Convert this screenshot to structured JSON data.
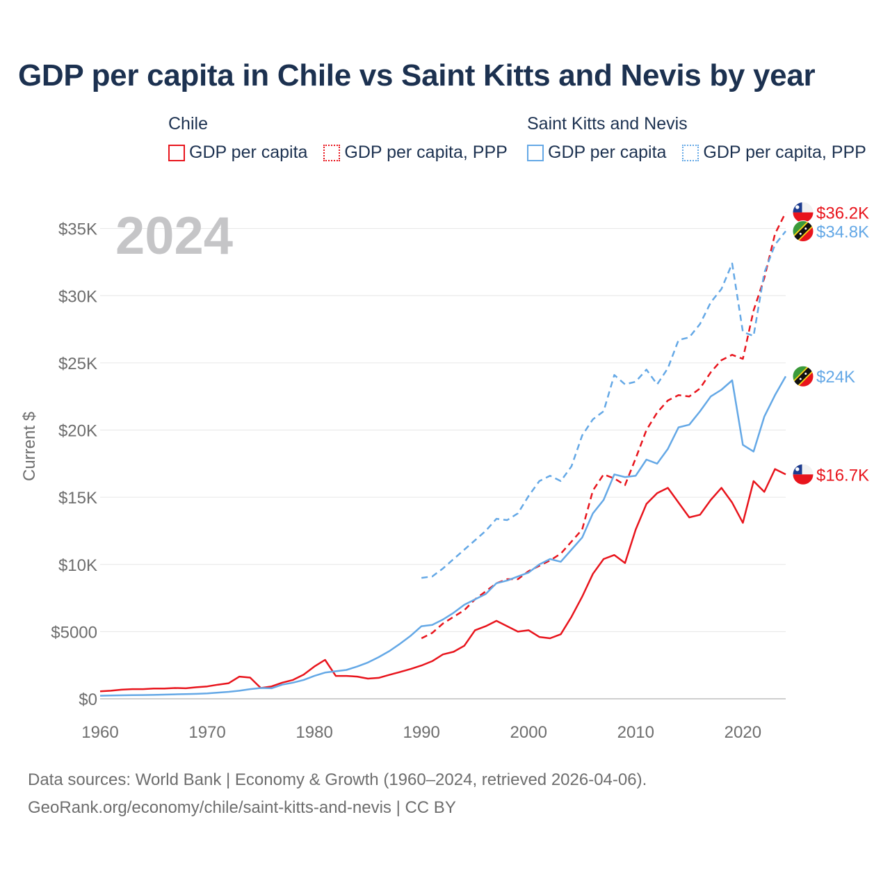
{
  "title": "GDP per capita in Chile vs Saint Kitts and Nevis by year",
  "legend": {
    "groups": [
      {
        "name": "Chile",
        "items": [
          "GDP per capita",
          "GDP per capita, PPP"
        ]
      },
      {
        "name": "Saint Kitts and Nevis",
        "items": [
          "GDP per capita",
          "GDP per capita, PPP"
        ]
      }
    ]
  },
  "year_label": "2024",
  "footer": {
    "line1": "Data sources: World Bank | Economy & Growth (1960–2024, retrieved 2026-04-06).",
    "line2": "GeoRank.org/economy/chile/saint-kitts-and-nevis | CC BY"
  },
  "colors": {
    "chile": "#e8141c",
    "skn": "#64a8e6",
    "title": "#1c3150",
    "axis": "#6d6d6d",
    "grid": "#e6e6e6"
  },
  "chart_data": {
    "type": "line",
    "ylabel": "Current $",
    "xlim": [
      1960,
      2024
    ],
    "ylim": [
      0,
      37000
    ],
    "x_ticks": [
      1960,
      1970,
      1980,
      1990,
      2000,
      2010,
      2020
    ],
    "x_tick_labels": [
      "1960",
      "1970",
      "1980",
      "1990",
      "2000",
      "2010",
      "2020"
    ],
    "y_ticks": [
      0,
      5000,
      10000,
      15000,
      20000,
      25000,
      30000,
      35000
    ],
    "y_tick_labels": [
      "$0",
      "$5000",
      "$10K",
      "$15K",
      "$20K",
      "$25K",
      "$30K",
      "$35K"
    ],
    "series": [
      {
        "name": "Chile GDP per capita",
        "color": "#e8141c",
        "dashed": false,
        "flag": "chile",
        "end_label": "$16.7K",
        "x": [
          1960,
          1961,
          1962,
          1963,
          1964,
          1965,
          1966,
          1967,
          1968,
          1969,
          1970,
          1971,
          1972,
          1973,
          1974,
          1975,
          1976,
          1977,
          1978,
          1979,
          1980,
          1981,
          1982,
          1983,
          1984,
          1985,
          1986,
          1987,
          1988,
          1989,
          1990,
          1991,
          1992,
          1993,
          1994,
          1995,
          1996,
          1997,
          1998,
          1999,
          2000,
          2001,
          2002,
          2003,
          2004,
          2005,
          2006,
          2007,
          2008,
          2009,
          2010,
          2011,
          2012,
          2013,
          2014,
          2015,
          2016,
          2017,
          2018,
          2019,
          2020,
          2021,
          2022,
          2023,
          2024
        ],
        "values": [
          560,
          600,
          680,
          720,
          720,
          760,
          760,
          800,
          780,
          860,
          920,
          1050,
          1160,
          1650,
          1580,
          800,
          920,
          1200,
          1400,
          1800,
          2400,
          2900,
          1700,
          1700,
          1650,
          1500,
          1560,
          1780,
          2000,
          2220,
          2480,
          2800,
          3300,
          3500,
          3950,
          5100,
          5400,
          5800,
          5400,
          5000,
          5100,
          4600,
          4500,
          4800,
          6100,
          7600,
          9300,
          10400,
          10700,
          10100,
          12600,
          14500,
          15300,
          15700,
          14600,
          13500,
          13700,
          14800,
          15700,
          14600,
          13100,
          16200,
          15400,
          17100,
          16700
        ]
      },
      {
        "name": "Chile GDP per capita, PPP",
        "color": "#e8141c",
        "dashed": true,
        "flag": "chile",
        "end_label": "$36.2K",
        "x": [
          1990,
          1991,
          1992,
          1993,
          1994,
          1995,
          1996,
          1997,
          1998,
          1999,
          2000,
          2001,
          2002,
          2003,
          2004,
          2005,
          2006,
          2007,
          2008,
          2009,
          2010,
          2011,
          2012,
          2013,
          2014,
          2015,
          2016,
          2017,
          2018,
          2019,
          2020,
          2021,
          2022,
          2023,
          2024
        ],
        "values": [
          4500,
          4900,
          5600,
          6100,
          6600,
          7400,
          8000,
          8600,
          8900,
          8900,
          9500,
          9900,
          10300,
          10800,
          11700,
          12600,
          15500,
          16700,
          16400,
          15900,
          17900,
          20000,
          21300,
          22200,
          22600,
          22500,
          23100,
          24300,
          25200,
          25600,
          25300,
          28900,
          31300,
          34600,
          36200
        ]
      },
      {
        "name": "Saint Kitts and Nevis GDP per capita",
        "color": "#64a8e6",
        "dashed": false,
        "flag": "skn",
        "end_label": "$24K",
        "x": [
          1960,
          1961,
          1962,
          1963,
          1964,
          1965,
          1966,
          1967,
          1968,
          1969,
          1970,
          1971,
          1972,
          1973,
          1974,
          1975,
          1976,
          1977,
          1978,
          1979,
          1980,
          1981,
          1982,
          1983,
          1984,
          1985,
          1986,
          1987,
          1988,
          1989,
          1990,
          1991,
          1992,
          1993,
          1994,
          1995,
          1996,
          1997,
          1998,
          1999,
          2000,
          2001,
          2002,
          2003,
          2004,
          2005,
          2006,
          2007,
          2008,
          2009,
          2010,
          2011,
          2012,
          2013,
          2014,
          2015,
          2016,
          2017,
          2018,
          2019,
          2020,
          2021,
          2022,
          2023,
          2024
        ],
        "values": [
          230,
          250,
          260,
          270,
          280,
          290,
          310,
          330,
          350,
          370,
          400,
          460,
          520,
          600,
          720,
          800,
          780,
          1050,
          1200,
          1400,
          1700,
          1950,
          2050,
          2150,
          2400,
          2700,
          3100,
          3550,
          4100,
          4700,
          5400,
          5500,
          5900,
          6400,
          7000,
          7400,
          7800,
          8600,
          8800,
          9100,
          9400,
          10000,
          10400,
          10200,
          11100,
          12000,
          13800,
          14800,
          16700,
          16500,
          16600,
          17800,
          17500,
          18600,
          20200,
          20400,
          21400,
          22500,
          23000,
          23700,
          18900,
          18400,
          21000,
          22600,
          24000
        ]
      },
      {
        "name": "Saint Kitts and Nevis GDP per capita, PPP",
        "color": "#64a8e6",
        "dashed": true,
        "flag": "skn",
        "end_label": "$34.8K",
        "x": [
          1990,
          1991,
          1992,
          1993,
          1994,
          1995,
          1996,
          1997,
          1998,
          1999,
          2000,
          2001,
          2002,
          2003,
          2004,
          2005,
          2006,
          2007,
          2008,
          2009,
          2010,
          2011,
          2012,
          2013,
          2014,
          2015,
          2016,
          2017,
          2018,
          2019,
          2020,
          2021,
          2022,
          2023,
          2024
        ],
        "values": [
          9000,
          9100,
          9700,
          10400,
          11100,
          11800,
          12500,
          13400,
          13300,
          13800,
          15100,
          16200,
          16600,
          16200,
          17300,
          19600,
          20800,
          21400,
          24100,
          23400,
          23600,
          24500,
          23400,
          24600,
          26700,
          26900,
          27900,
          29500,
          30500,
          32400,
          27300,
          27000,
          31700,
          33800,
          34800
        ]
      }
    ]
  }
}
